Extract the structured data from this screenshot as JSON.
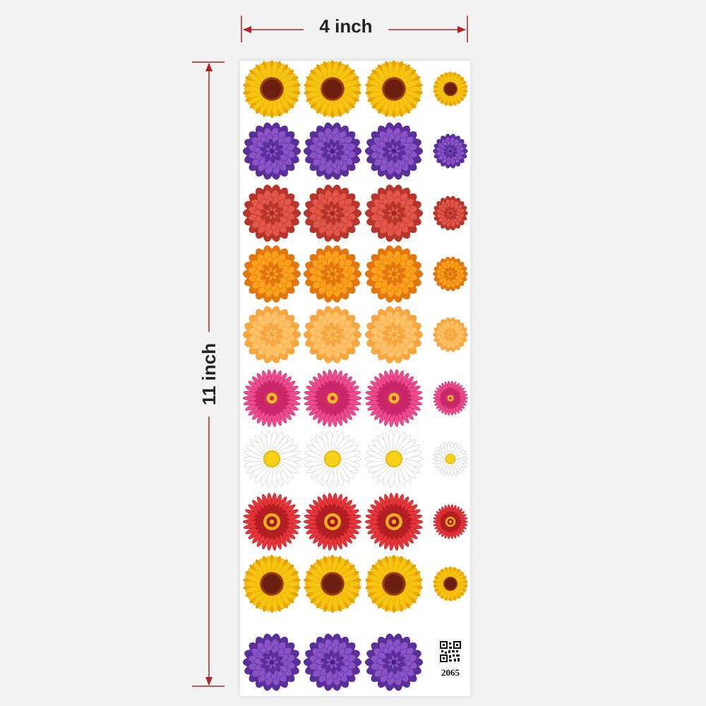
{
  "dimensions": {
    "width_label": "4 inch",
    "height_label": "11 inch",
    "arrow_color": "#b22222"
  },
  "sheet": {
    "product_code": "2065",
    "rows": [
      {
        "flower": "sunflower",
        "petal": "#f6c512",
        "petal_dark": "#e8a400",
        "center": "#6b1f10",
        "center_ring": "#9a3a10"
      },
      {
        "flower": "dahlia",
        "petal": "#8a54c6",
        "petal_dark": "#5b2f9a",
        "center": "#4a2080",
        "center_ring": "#6a3aa8"
      },
      {
        "flower": "dahlia",
        "petal": "#e2574a",
        "petal_dark": "#b8352b",
        "center": "#9a2a22",
        "center_ring": "#c84438"
      },
      {
        "flower": "dahlia",
        "petal": "#f9a21e",
        "petal_dark": "#e3760e",
        "center": "#d86a10",
        "center_ring": "#f08a20"
      },
      {
        "flower": "dahlia",
        "petal": "#ffc268",
        "petal_dark": "#f7a640",
        "center": "#f5a23c",
        "center_ring": "#ffb955"
      },
      {
        "flower": "gerbera",
        "petal": "#ec4c8c",
        "petal_dark": "#c9276a",
        "center": "#f4c020",
        "center_ring": "#d12a6a"
      },
      {
        "flower": "daisy",
        "petal": "#ffffff",
        "petal_dark": "#c8c8c8",
        "center": "#f7d21a",
        "center_ring": "#e6b800"
      },
      {
        "flower": "gerbera",
        "petal": "#e5343a",
        "petal_dark": "#b31e22",
        "center": "#a51a20",
        "center_ring": "#f0b020"
      },
      {
        "flower": "sunflower",
        "petal": "#f6c512",
        "petal_dark": "#e8a400",
        "center": "#6b1f10",
        "center_ring": "#9a3a10"
      },
      {
        "flower": "dahlia",
        "petal": "#8a54c6",
        "petal_dark": "#5b2f9a",
        "center": "#4a2080",
        "center_ring": "#6a3aa8"
      }
    ]
  }
}
